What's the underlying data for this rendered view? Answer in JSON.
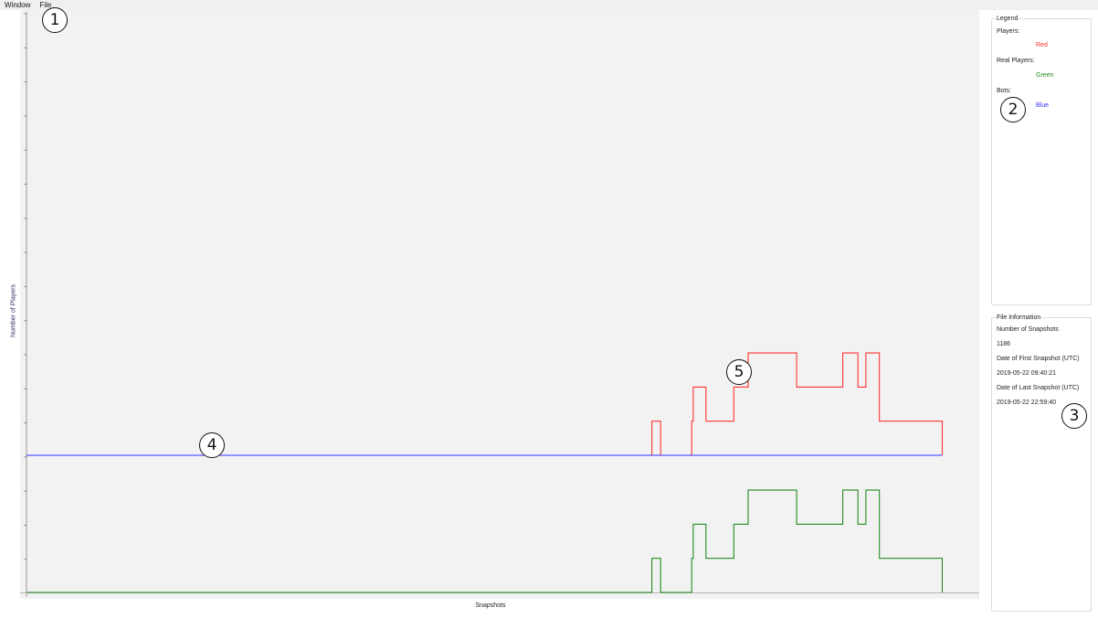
{
  "menubar": {
    "items": [
      "Window",
      "File"
    ]
  },
  "chart": {
    "y_axis_label": "Number of Players",
    "x_axis_label": "Snapshots"
  },
  "legend": {
    "title": "Legend",
    "entries": [
      {
        "label": "Players:",
        "value": "Red",
        "color": "#ff3333"
      },
      {
        "label": "Real Players:",
        "value": "Green",
        "color": "#228b22"
      },
      {
        "label": "Bots:",
        "value": "Blue",
        "color": "#3333ff"
      }
    ]
  },
  "file_info": {
    "title": "File Information",
    "lines": [
      "Number of Snapshots",
      "1186",
      "Date of First Snapshot (UTC)",
      "2019-05-22 09:40:21",
      "Date of Last Snapshot (UTC)",
      "2019-05-22 22:59:40"
    ]
  },
  "markers": [
    "1",
    "2",
    "3",
    "4",
    "5"
  ],
  "chart_data": {
    "type": "line",
    "xlabel": "Snapshots",
    "ylabel": "Number of Players",
    "x_range": [
      0,
      1186
    ],
    "grid": false,
    "panels": [
      {
        "name": "top",
        "y_range": [
          0,
          4
        ],
        "series": [
          {
            "name": "Players",
            "color": "#ff3333",
            "points": [
              [
                0,
                0
              ],
              [
                786,
                0
              ],
              [
                786,
                1
              ],
              [
                797,
                1
              ],
              [
                797,
                0
              ],
              [
                836,
                0
              ],
              [
                836,
                1
              ],
              [
                838,
                1
              ],
              [
                838,
                2
              ],
              [
                854,
                2
              ],
              [
                854,
                1
              ],
              [
                889,
                1
              ],
              [
                889,
                2
              ],
              [
                907,
                2
              ],
              [
                907,
                3
              ],
              [
                968,
                3
              ],
              [
                968,
                2
              ],
              [
                1026,
                2
              ],
              [
                1026,
                3
              ],
              [
                1045,
                3
              ],
              [
                1045,
                2
              ],
              [
                1055,
                2
              ],
              [
                1055,
                3
              ],
              [
                1072,
                3
              ],
              [
                1072,
                1
              ],
              [
                1151,
                1
              ],
              [
                1151,
                0
              ]
            ]
          },
          {
            "name": "Bots",
            "color": "#3333ff",
            "points": [
              [
                0,
                0
              ],
              [
                1151,
                0
              ]
            ]
          }
        ]
      },
      {
        "name": "bottom",
        "y_range": [
          0,
          3
        ],
        "series": [
          {
            "name": "Real Players",
            "color": "#228b22",
            "points": [
              [
                0,
                0
              ],
              [
                786,
                0
              ],
              [
                786,
                1
              ],
              [
                797,
                1
              ],
              [
                797,
                0
              ],
              [
                836,
                0
              ],
              [
                836,
                1
              ],
              [
                838,
                1
              ],
              [
                838,
                2
              ],
              [
                854,
                2
              ],
              [
                854,
                1
              ],
              [
                889,
                1
              ],
              [
                889,
                2
              ],
              [
                907,
                2
              ],
              [
                907,
                3
              ],
              [
                968,
                3
              ],
              [
                968,
                2
              ],
              [
                1026,
                2
              ],
              [
                1026,
                3
              ],
              [
                1045,
                3
              ],
              [
                1045,
                2
              ],
              [
                1055,
                2
              ],
              [
                1055,
                3
              ],
              [
                1072,
                3
              ],
              [
                1072,
                1
              ],
              [
                1151,
                1
              ],
              [
                1151,
                0
              ]
            ]
          }
        ]
      }
    ]
  }
}
